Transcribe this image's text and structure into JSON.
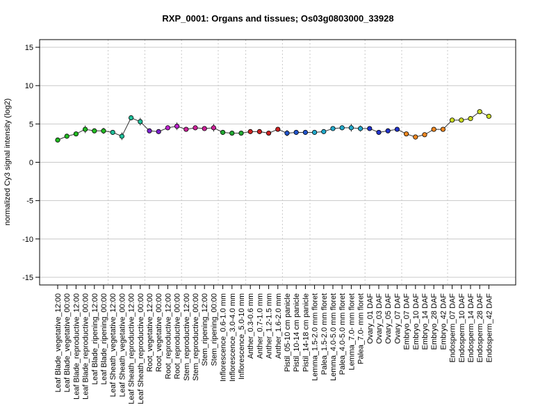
{
  "chart_data": {
    "type": "line",
    "title": "RXP_0001: Organs and tissues; Os03g0803000_33928",
    "ylabel": "normalized Cy3 signal intensity (log2)",
    "xlabel": "",
    "ylim": [
      -16,
      16
    ],
    "yticks": [
      -15,
      -10,
      -5,
      0,
      5,
      10,
      15
    ],
    "grid": true,
    "categories": [
      "Leaf Blade_vegetative_12:00",
      "Leaf Blade_vegetative_00:00",
      "Leaf Blade_reproductive_12:00",
      "Leaf Blade_reproductive_00:00",
      "Leaf Blade_ripening_12:00",
      "Leaf Blade_ripening_00:00",
      "Leaf Sheath_vegetative_12:00",
      "Leaf Sheath_vegetative_00:00",
      "Leaf Sheath_reproductive_12:00",
      "Leaf Sheath_reproductive_00:00",
      "Root_vegetative_12:00",
      "Root_vegetative_00:00",
      "Root_reproductive_12:00",
      "Root_reproductive_00:00",
      "Stem_reproductive_12:00",
      "Stem_reproductive_00:00",
      "Stem_ripening_12:00",
      "Stem_ripening_00:00",
      "Inflorescence_0.6-1.0 mm",
      "Inflorescence_3.0-4.0 mm",
      "Inflorescence_5.0-10 mm",
      "Anther_0.3-0.6 mm",
      "Anther_0.7-1.0 mm",
      "Anther_1.2-1.5 mm",
      "Anther_1.6-2.0 mm",
      "Pistil_05-10 cm panicle",
      "Pistil_10-14 cm panicle",
      "Pistil_14-18 cm panicle",
      "Lemma_1.5-2.0 mm floret",
      "Palea_1.5-2.0 mm floret",
      "Lemma_4.0-5.0 mm floret",
      "Palea_4.0-5.0 mm floret",
      "Lemma_7.0- mm floret",
      "Palea_7.0- mm floret",
      "Ovary_01 DAF",
      "Ovary_03 DAF",
      "Ovary_05 DAF",
      "Ovary_07 DAF",
      "Embryo_07 DAF",
      "Embryo_10 DAF",
      "Embryo_14 DAF",
      "Embryo_28 DAF",
      "Embryo_42 DAF",
      "Endosperm_07 DAF",
      "Endosperm_10 DAF",
      "Endosperm_14 DAF",
      "Endosperm_28 DAF",
      "Endosperm_42 DAF"
    ],
    "values": [
      2.9,
      3.4,
      3.7,
      4.3,
      4.1,
      4.1,
      3.9,
      3.4,
      5.8,
      5.3,
      4.1,
      4.0,
      4.5,
      4.7,
      4.3,
      4.5,
      4.4,
      4.5,
      3.9,
      3.8,
      3.8,
      4.0,
      4.0,
      3.8,
      4.3,
      3.8,
      3.9,
      3.9,
      3.9,
      4.0,
      4.4,
      4.5,
      4.5,
      4.4,
      4.4,
      3.9,
      4.1,
      4.3,
      3.7,
      3.3,
      3.6,
      4.3,
      4.3,
      5.5,
      5.5,
      5.7,
      6.6,
      6.0
    ],
    "errors": [
      0.2,
      0.2,
      0.2,
      0.5,
      0.3,
      0.4,
      0.3,
      0.5,
      0.3,
      0.5,
      0.2,
      0.2,
      0.2,
      0.5,
      0.2,
      0.2,
      0.2,
      0.5,
      0.2,
      0.2,
      0.2,
      0.2,
      0.2,
      0.2,
      0.2,
      0.4,
      0.2,
      0.2,
      0.2,
      0.3,
      0.2,
      0.2,
      0.5,
      0.4,
      0.2,
      0.2,
      0.2,
      0.2,
      0.2,
      0.2,
      0.2,
      0.2,
      0.2,
      0.2,
      0.2,
      0.2,
      0.3,
      0.2
    ],
    "colors": [
      "#22bb22",
      "#22bb22",
      "#22bb22",
      "#22bb22",
      "#22bb22",
      "#22bb22",
      "#1fbf9a",
      "#1fbf9a",
      "#1fbf9a",
      "#1fbf9a",
      "#7a22cc",
      "#7a22cc",
      "#bb22cc",
      "#bb22cc",
      "#cc2299",
      "#cc2299",
      "#cc2299",
      "#cc2299",
      "#22aa33",
      "#22aa33",
      "#22aa33",
      "#cc2222",
      "#cc2222",
      "#cc2222",
      "#cc2222",
      "#2255cc",
      "#2255cc",
      "#2255cc",
      "#22aacc",
      "#22aacc",
      "#22aacc",
      "#22aacc",
      "#22aacc",
      "#22aacc",
      "#2233cc",
      "#2233cc",
      "#2233cc",
      "#2233cc",
      "#ee8822",
      "#ee8822",
      "#ee8822",
      "#ee8822",
      "#ee8822",
      "#ccdd22",
      "#ccdd22",
      "#ccdd22",
      "#ccdd22",
      "#ccdd22"
    ],
    "group_separators_after": [
      5,
      9,
      13,
      17,
      20,
      24,
      27,
      33,
      37,
      42
    ]
  }
}
